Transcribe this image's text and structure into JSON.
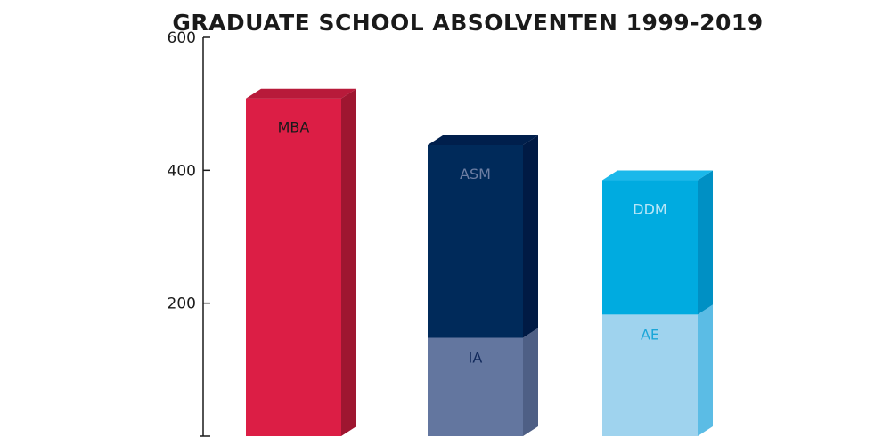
{
  "chart_data": {
    "type": "bar",
    "title": "GRADUATE SCHOOL ABSOLVENTEN 1999-2019",
    "xlabel": "",
    "ylabel": "",
    "ylim": [
      0,
      600
    ],
    "yticks": [
      "600",
      "400",
      "200"
    ],
    "stacked": true,
    "style": "3d",
    "bars": [
      {
        "segments": [
          {
            "label": "MBA",
            "value": 508,
            "color": "#dc1e45",
            "side": "#9e1630",
            "top": "#b81a3a",
            "label_color": "#1a1a1a"
          }
        ]
      },
      {
        "segments": [
          {
            "label": "IA",
            "value": 148,
            "color": "#63769f",
            "side": "#4e5f85",
            "top": "#56688f",
            "label_color": "#10285a"
          },
          {
            "label": "ASM",
            "value": 290,
            "color": "#002a5a",
            "side": "#001a44",
            "top": "#001f4c",
            "label_color": "#6d7ea3"
          }
        ]
      },
      {
        "segments": [
          {
            "label": "AE",
            "value": 183,
            "color": "#9fd3ee",
            "side": "#5bbce5",
            "top": "#7cc7eb",
            "label_color": "#1aa6d8"
          },
          {
            "label": "DDM",
            "value": 202,
            "color": "#00abe0",
            "side": "#0090c4",
            "top": "#1bb8ea",
            "label_color": "#b8e6f7"
          }
        ]
      }
    ]
  }
}
